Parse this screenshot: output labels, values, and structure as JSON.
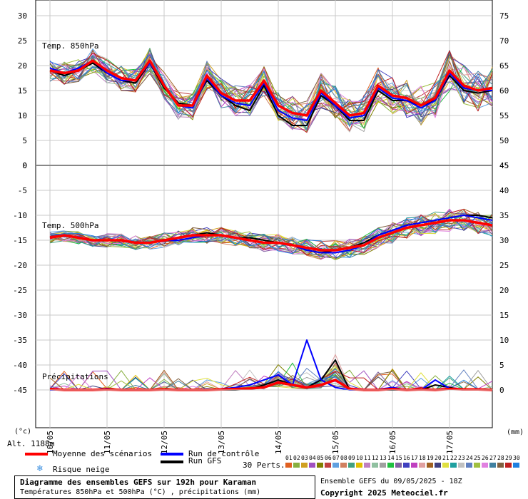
{
  "chart_data": [
    {
      "type": "line",
      "panel_label": "Temp. 850hPa",
      "ylim_left": [
        0,
        30
      ],
      "ylim_right": [
        45,
        75
      ],
      "left_ticks": [
        "30",
        "25",
        "20",
        "15",
        "10",
        "5",
        "0"
      ],
      "right_ticks": [
        "75",
        "70",
        "65",
        "60",
        "55",
        "50",
        "45"
      ],
      "x": [
        "10/05 00h",
        "10/05 06h",
        "10/05 12h",
        "10/05 18h",
        "11/05 00h",
        "11/05 06h",
        "11/05 12h",
        "11/05 18h",
        "12/05 00h",
        "12/05 06h",
        "12/05 12h",
        "12/05 18h",
        "13/05 00h",
        "13/05 06h",
        "13/05 12h",
        "13/05 18h",
        "14/05 00h",
        "14/05 06h",
        "14/05 12h",
        "14/05 18h",
        "15/05 00h",
        "15/05 06h",
        "15/05 12h",
        "15/05 18h",
        "16/05 00h",
        "16/05 06h",
        "16/05 12h",
        "16/05 18h",
        "17/05 00h",
        "17/05 06h",
        "17/05 12h",
        "17/05 18h"
      ],
      "series": [
        {
          "name": "Moyenne des scénarios",
          "color": "#ff0000",
          "values": [
            19,
            18.5,
            19,
            21,
            19,
            17.5,
            17,
            21,
            16,
            12,
            12,
            18,
            14.5,
            13,
            13,
            17,
            12,
            10.5,
            10,
            15,
            12.5,
            10,
            10.5,
            16,
            14,
            13.5,
            12,
            13.5,
            19,
            16,
            15,
            15.5
          ]
        },
        {
          "name": "Run de contrôle",
          "color": "#0000ff",
          "values": [
            19.5,
            18.5,
            19.5,
            21,
            18.5,
            17,
            17,
            20.5,
            16,
            12,
            11.5,
            17.5,
            14,
            12.5,
            12,
            16.5,
            11,
            9.5,
            9,
            14.5,
            12,
            9.5,
            10,
            15.5,
            13.5,
            13,
            11.5,
            13,
            18.5,
            15.5,
            15,
            15
          ]
        },
        {
          "name": "Run GFS",
          "color": "#000000",
          "values": [
            19,
            18,
            19,
            20.5,
            18.5,
            17,
            16.5,
            20.5,
            15.5,
            12.5,
            12,
            17,
            14,
            12,
            11,
            16,
            10,
            8,
            8,
            14,
            12,
            9,
            9,
            15,
            13,
            13,
            12,
            13,
            18,
            15,
            14.5,
            15
          ]
        }
      ]
    },
    {
      "type": "line",
      "panel_label": "Temp. 500hPa",
      "ylim_left": [
        -45,
        0
      ],
      "ylim_right": [
        0,
        45
      ],
      "left_ticks": [
        "0",
        "-5",
        "-10",
        "-15",
        "-20",
        "-25",
        "-30",
        "-35",
        "-40",
        "-45"
      ],
      "right_ticks": [
        "45",
        "40",
        "35",
        "30",
        "25",
        "20",
        "15",
        "10",
        "5",
        "0"
      ],
      "x": [
        "10/05 00h",
        "10/05 06h",
        "10/05 12h",
        "10/05 18h",
        "11/05 00h",
        "11/05 06h",
        "11/05 12h",
        "11/05 18h",
        "12/05 00h",
        "12/05 06h",
        "12/05 12h",
        "12/05 18h",
        "13/05 00h",
        "13/05 06h",
        "13/05 12h",
        "13/05 18h",
        "14/05 00h",
        "14/05 06h",
        "14/05 12h",
        "14/05 18h",
        "15/05 00h",
        "15/05 06h",
        "15/05 12h",
        "15/05 18h",
        "16/05 00h",
        "16/05 06h",
        "16/05 12h",
        "16/05 18h",
        "17/05 00h",
        "17/05 06h",
        "17/05 12h",
        "17/05 18h"
      ],
      "series": [
        {
          "name": "Moyenne des scénarios",
          "color": "#ff0000",
          "values": [
            -14.5,
            -14,
            -14.5,
            -15,
            -15,
            -15,
            -15.5,
            -15.5,
            -15,
            -14.5,
            -14,
            -14,
            -14,
            -14.5,
            -15,
            -15.5,
            -15.5,
            -16,
            -16.5,
            -17,
            -17,
            -16.5,
            -16,
            -14.5,
            -13.5,
            -12.5,
            -12,
            -11.5,
            -11,
            -11,
            -11.5,
            -12
          ]
        },
        {
          "name": "Run de contrôle",
          "color": "#0000ff",
          "values": [
            -14.5,
            -14,
            -14.5,
            -15,
            -15,
            -15,
            -15.5,
            -15.5,
            -15,
            -15,
            -14.5,
            -14,
            -14,
            -14.5,
            -15,
            -15.5,
            -15.5,
            -16,
            -17,
            -17.5,
            -17.5,
            -17,
            -16,
            -14,
            -13,
            -12,
            -11.5,
            -11,
            -10.5,
            -10,
            -10.5,
            -11
          ]
        },
        {
          "name": "Run GFS",
          "color": "#000000",
          "values": [
            -14.5,
            -14,
            -14.5,
            -15,
            -15,
            -15,
            -15.5,
            -15.5,
            -15,
            -14.5,
            -14,
            -13.5,
            -14,
            -14.5,
            -14.5,
            -15,
            -15.5,
            -16,
            -17,
            -17.5,
            -17,
            -16.5,
            -15.5,
            -14,
            -13,
            -12,
            -11.5,
            -11,
            -10.5,
            -10,
            -10,
            -10.5
          ]
        }
      ]
    },
    {
      "type": "line",
      "panel_label": "Précipitations",
      "unit": "mm",
      "ylim": [
        0,
        15
      ],
      "x": [
        "10/05 00h",
        "10/05 06h",
        "10/05 12h",
        "10/05 18h",
        "11/05 00h",
        "11/05 06h",
        "11/05 12h",
        "11/05 18h",
        "12/05 00h",
        "12/05 06h",
        "12/05 12h",
        "12/05 18h",
        "13/05 00h",
        "13/05 06h",
        "13/05 12h",
        "13/05 18h",
        "14/05 00h",
        "14/05 06h",
        "14/05 12h",
        "14/05 18h",
        "15/05 00h",
        "15/05 06h",
        "15/05 12h",
        "15/05 18h",
        "16/05 00h",
        "16/05 06h",
        "16/05 12h",
        "16/05 18h",
        "17/05 00h",
        "17/05 06h",
        "17/05 12h",
        "17/05 18h"
      ],
      "series": [
        {
          "name": "Moyenne des scénarios",
          "color": "#ff0000",
          "values": [
            0.2,
            0,
            0,
            0,
            0.1,
            0,
            0,
            0,
            0.1,
            0,
            0,
            0,
            0.1,
            0.2,
            0.3,
            0.5,
            1.5,
            1,
            0.5,
            1,
            2,
            0.2,
            0,
            0,
            0.2,
            0,
            0.1,
            0,
            0.2,
            0.1,
            0.1,
            0
          ]
        },
        {
          "name": "Run de contrôle",
          "color": "#0000ff",
          "values": [
            0,
            0,
            0,
            0,
            0.3,
            0,
            0,
            0,
            0,
            0,
            0,
            0,
            0.2,
            0.5,
            1,
            2,
            3,
            1,
            10,
            2,
            0.5,
            0,
            0,
            0.1,
            0.5,
            0,
            0,
            2,
            0.3,
            0,
            0,
            0
          ]
        },
        {
          "name": "Run GFS",
          "color": "#000000",
          "values": [
            0,
            0,
            0,
            0,
            0,
            0,
            0,
            0,
            0,
            0,
            0,
            0,
            0,
            0,
            0.2,
            1,
            2,
            1,
            0.5,
            2,
            6,
            0,
            0,
            0,
            0,
            0,
            0,
            1,
            0.5,
            0,
            0,
            0
          ]
        }
      ]
    }
  ],
  "axis": {
    "x_ticks": [
      "10/05",
      "11/05",
      "12/05",
      "13/05",
      "14/05",
      "15/05",
      "16/05",
      "17/05"
    ],
    "left_unit": "(°c)",
    "right_unit": "(mm)",
    "altitude": "Alt. 1188m"
  },
  "legend": {
    "mean": "Moyenne des scénarios",
    "control": "Run de contrôle",
    "gfs": "Run GFS",
    "snow": "Risque neige",
    "perts_label": "30 Perts.",
    "pert_numbers": [
      "01",
      "02",
      "03",
      "04",
      "05",
      "06",
      "07",
      "08",
      "09",
      "10",
      "11",
      "12",
      "13",
      "14",
      "15",
      "16",
      "17",
      "18",
      "19",
      "20",
      "21",
      "22",
      "23",
      "24",
      "25",
      "26",
      "27",
      "28",
      "29",
      "30"
    ],
    "pert_colors": [
      "#e06020",
      "#88b040",
      "#d0a020",
      "#a050c0",
      "#808000",
      "#c04040",
      "#60a0e0",
      "#d08060",
      "#40a080",
      "#e0c000",
      "#c080c0",
      "#90c0a0",
      "#a0a0a0",
      "#20c040",
      "#8060a0",
      "#4040c0",
      "#c040c0",
      "#e0a0a0",
      "#a06020",
      "#404080",
      "#e0e040",
      "#20a0a0",
      "#c0c0c0",
      "#6080c0",
      "#a0c040",
      "#e080e0",
      "#4080a0",
      "#806040",
      "#c02020",
      "#2080e0"
    ]
  },
  "footer": {
    "title": "Diagramme des ensembles GEFS sur 192h pour Karaman",
    "subtitle": "Températures 850hPa et 500hPa (°C) , précipitations (mm)",
    "ensemble_info": "Ensemble GEFS du 09/05/2025 - 18Z",
    "copyright": "Copyright 2025 Meteociel.fr"
  }
}
